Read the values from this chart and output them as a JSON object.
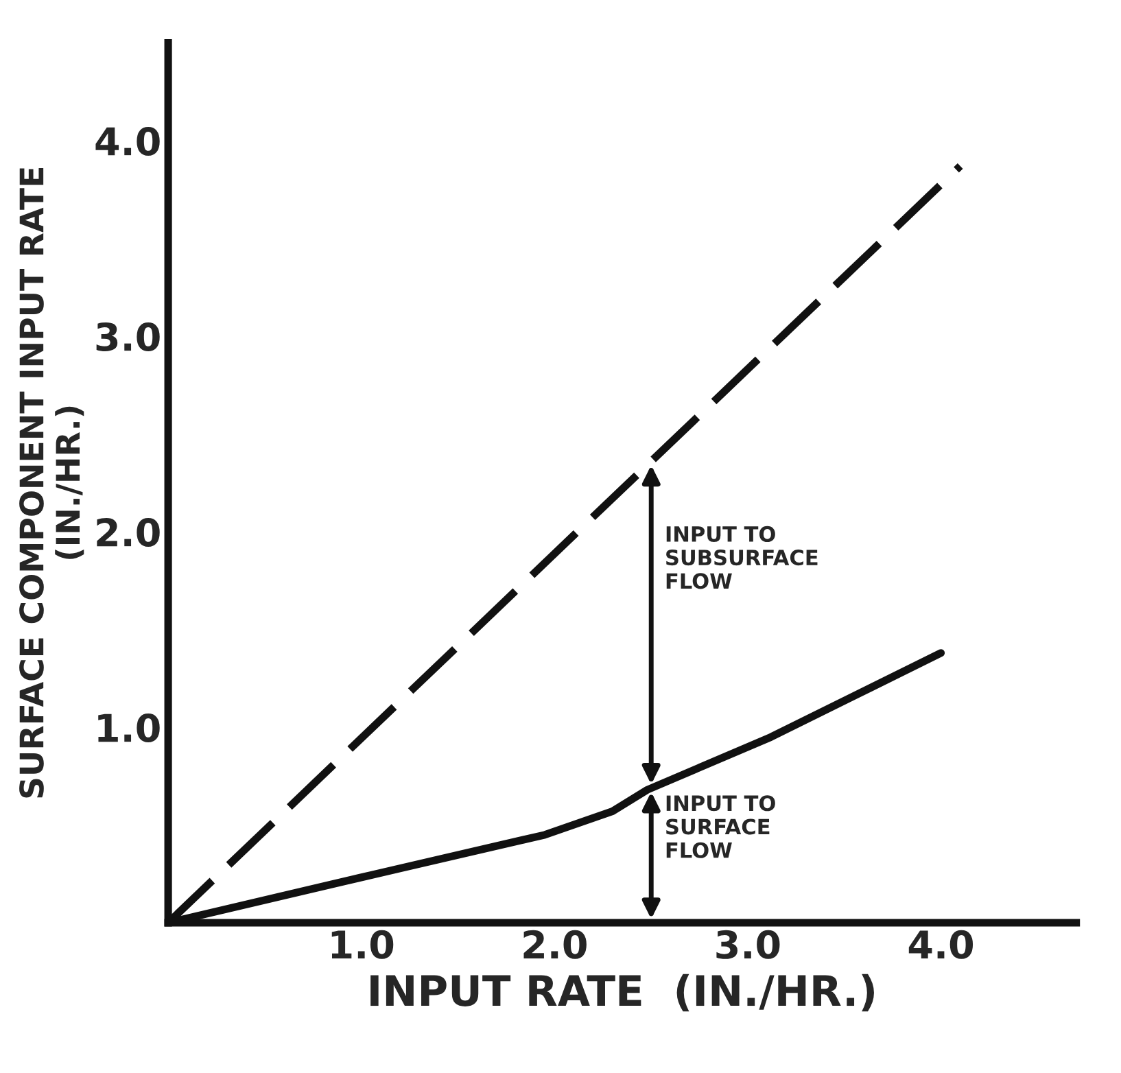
{
  "chart_data": {
    "type": "line",
    "xlabel": "INPUT RATE  (IN./HR.)",
    "ylabel": "SURFACE COMPONENT INPUT RATE\n(IN./HR.)",
    "xlim": [
      0,
      4.7
    ],
    "ylim": [
      0,
      4.5
    ],
    "xticks": [
      {
        "value": 1.0,
        "label": "1.0"
      },
      {
        "value": 2.0,
        "label": "2.0"
      },
      {
        "value": 3.0,
        "label": "3.0"
      },
      {
        "value": 4.0,
        "label": "4.0"
      }
    ],
    "yticks": [
      {
        "value": 1.0,
        "label": "1.0"
      },
      {
        "value": 2.0,
        "label": "2.0"
      },
      {
        "value": 3.0,
        "label": "3.0"
      },
      {
        "value": 4.0,
        "label": "4.0"
      }
    ],
    "grid": false,
    "legend": false,
    "series": [
      {
        "color": "#111111",
        "line_style": "dashed",
        "x": [
          0,
          4.1
        ],
        "values": [
          0,
          3.87
        ]
      },
      {
        "color": "#111111",
        "line_style": "solid",
        "x": [
          0,
          0.99,
          1.95,
          2.3,
          2.48,
          3.12,
          4.0
        ],
        "values": [
          0,
          0.23,
          0.45,
          0.57,
          0.68,
          0.95,
          1.38
        ]
      }
    ],
    "annotations": [
      "INPUT TO\nSUBSURFACE\nFLOW",
      "INPUT TO\nSURFACE\nFLOW"
    ]
  }
}
